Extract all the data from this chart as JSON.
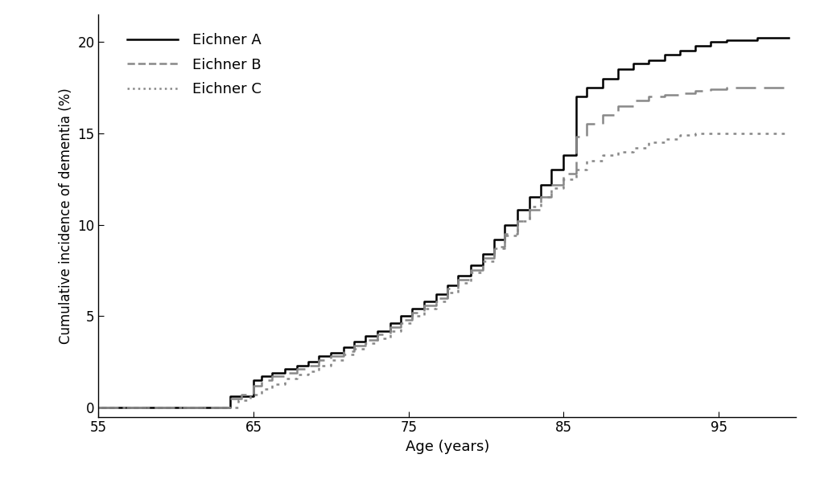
{
  "title": "",
  "xlabel": "Age (years)",
  "ylabel": "Cumulative incidence of dementia (%)",
  "xlim": [
    55,
    100
  ],
  "ylim": [
    -0.5,
    21.5
  ],
  "xticks": [
    55,
    65,
    75,
    85,
    95
  ],
  "yticks": [
    0,
    5,
    10,
    15,
    20
  ],
  "background_color": "#ffffff",
  "legend_labels": [
    "Eichner A",
    "Eichner B",
    "Eichner C"
  ],
  "eichner_A": {
    "x": [
      55,
      63.5,
      64.2,
      65.0,
      65.5,
      66.2,
      67.0,
      67.8,
      68.5,
      69.2,
      70.0,
      70.8,
      71.5,
      72.2,
      73.0,
      73.8,
      74.5,
      75.2,
      76.0,
      76.8,
      77.5,
      78.2,
      79.0,
      79.8,
      80.5,
      81.2,
      82.0,
      82.8,
      83.5,
      84.2,
      85.0,
      85.8,
      86.5,
      87.5,
      88.5,
      89.5,
      90.5,
      91.5,
      92.5,
      93.5,
      94.5,
      95.5,
      96.5,
      97.5,
      99.5
    ],
    "y": [
      0.0,
      0.6,
      0.6,
      1.5,
      1.7,
      1.9,
      2.1,
      2.3,
      2.5,
      2.8,
      3.0,
      3.3,
      3.6,
      3.9,
      4.2,
      4.6,
      5.0,
      5.4,
      5.8,
      6.2,
      6.7,
      7.2,
      7.8,
      8.4,
      9.2,
      10.0,
      10.8,
      11.5,
      12.2,
      13.0,
      13.8,
      17.0,
      17.5,
      18.0,
      18.5,
      18.8,
      19.0,
      19.3,
      19.5,
      19.8,
      20.0,
      20.1,
      20.1,
      20.2,
      20.2
    ]
  },
  "eichner_B": {
    "x": [
      55,
      63.5,
      64.2,
      65.0,
      65.5,
      66.2,
      67.0,
      67.8,
      68.5,
      69.2,
      70.0,
      70.8,
      71.5,
      72.2,
      73.0,
      73.8,
      74.5,
      75.2,
      76.0,
      76.8,
      77.5,
      78.2,
      79.0,
      79.8,
      80.5,
      81.2,
      82.0,
      82.8,
      83.5,
      84.2,
      85.0,
      85.8,
      86.5,
      87.5,
      88.5,
      89.5,
      90.5,
      91.5,
      92.5,
      93.5,
      94.5,
      95.5,
      96.5,
      97.5,
      99.5
    ],
    "y": [
      0.0,
      0.5,
      0.7,
      1.2,
      1.5,
      1.7,
      1.9,
      2.1,
      2.3,
      2.6,
      2.8,
      3.1,
      3.4,
      3.7,
      4.0,
      4.4,
      4.8,
      5.2,
      5.6,
      6.0,
      6.5,
      7.0,
      7.5,
      8.2,
      8.8,
      9.5,
      10.2,
      10.8,
      11.5,
      12.2,
      12.8,
      14.8,
      15.5,
      16.0,
      16.5,
      16.8,
      17.0,
      17.1,
      17.2,
      17.3,
      17.4,
      17.5,
      17.5,
      17.5,
      17.5
    ]
  },
  "eichner_C": {
    "x": [
      55,
      64.0,
      64.8,
      65.5,
      66.2,
      67.0,
      67.8,
      68.5,
      69.2,
      70.0,
      70.8,
      71.5,
      72.2,
      73.0,
      73.8,
      74.5,
      75.2,
      76.0,
      76.8,
      77.5,
      78.2,
      79.0,
      79.8,
      80.5,
      81.2,
      82.0,
      82.8,
      83.5,
      84.2,
      85.0,
      85.8,
      86.5,
      87.5,
      88.5,
      89.5,
      90.5,
      91.5,
      92.5,
      93.5,
      94.5,
      95.5,
      96.5,
      97.5,
      99.5
    ],
    "y": [
      0.0,
      0.4,
      0.7,
      1.0,
      1.3,
      1.6,
      1.8,
      2.0,
      2.3,
      2.6,
      2.9,
      3.2,
      3.5,
      3.8,
      4.2,
      4.6,
      5.0,
      5.4,
      5.8,
      6.3,
      6.8,
      7.4,
      8.0,
      8.7,
      9.4,
      10.2,
      11.0,
      11.5,
      12.0,
      12.5,
      13.0,
      13.5,
      13.8,
      14.0,
      14.2,
      14.5,
      14.7,
      14.9,
      15.0,
      15.0,
      15.0,
      15.0,
      15.0,
      15.0
    ]
  }
}
